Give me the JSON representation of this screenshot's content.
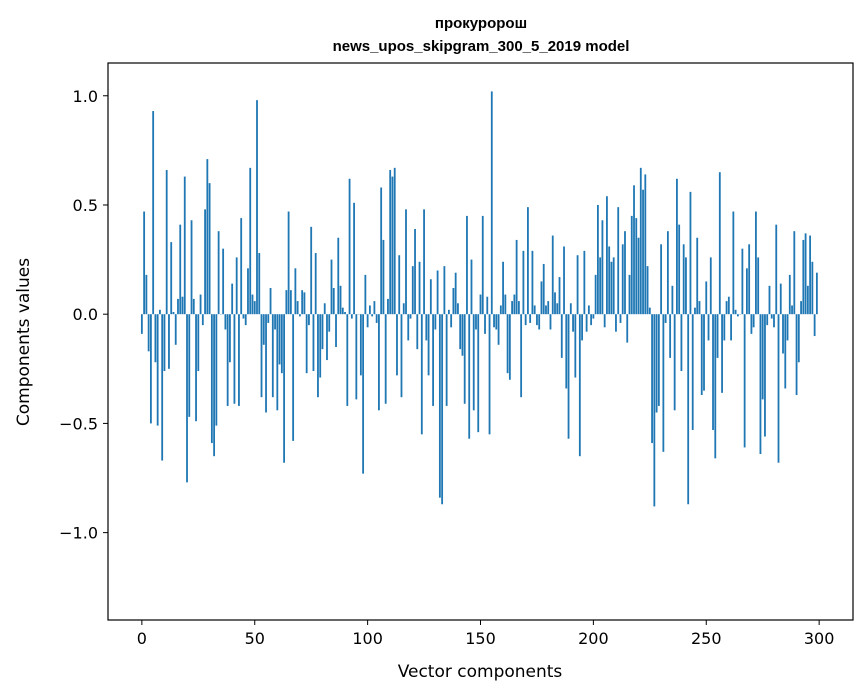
{
  "chart_data": {
    "type": "bar",
    "title": "прокуророш",
    "subtitle": "news_upos_skipgram_300_5_2019 model",
    "xlabel": "Vector components",
    "ylabel": "Components values",
    "xlim": [
      -15,
      315
    ],
    "ylim": [
      -1.4,
      1.15
    ],
    "xticks": [
      0,
      50,
      100,
      150,
      200,
      250,
      300
    ],
    "xtick_labels": [
      "0",
      "50",
      "100",
      "150",
      "200",
      "250",
      "300"
    ],
    "yticks": [
      -1.0,
      -0.5,
      0.0,
      0.5,
      1.0
    ],
    "ytick_labels": [
      "−1.0",
      "−0.5",
      "0.0",
      "0.5",
      "1.0"
    ],
    "grid": false,
    "bar_color": "#1f77b4",
    "values": [
      -0.09,
      0.47,
      0.18,
      -0.17,
      -0.5,
      0.93,
      -0.22,
      -0.51,
      0.02,
      -0.67,
      -0.26,
      0.66,
      -0.25,
      0.33,
      0.01,
      -0.14,
      0.07,
      0.41,
      0.08,
      0.63,
      -0.77,
      -0.47,
      0.43,
      0.07,
      -0.49,
      -0.26,
      0.09,
      -0.05,
      0.48,
      0.71,
      0.6,
      -0.59,
      -0.65,
      -0.51,
      0.38,
      0.0,
      0.3,
      -0.07,
      -0.42,
      -0.22,
      0.14,
      -0.41,
      0.26,
      -0.42,
      0.44,
      -0.02,
      -0.05,
      0.21,
      0.67,
      0.09,
      0.06,
      0.98,
      0.28,
      -0.38,
      -0.14,
      -0.45,
      -0.04,
      0.12,
      -0.38,
      -0.07,
      -0.44,
      -0.23,
      -0.27,
      -0.68,
      0.11,
      0.47,
      0.11,
      -0.58,
      0.21,
      0.06,
      -0.01,
      0.11,
      0.1,
      -0.27,
      -0.05,
      0.4,
      -0.26,
      0.28,
      -0.38,
      -0.29,
      -0.16,
      0.05,
      -0.21,
      -0.08,
      0.25,
      0.12,
      -0.15,
      0.35,
      0.13,
      0.03,
      0.01,
      -0.42,
      0.62,
      -0.02,
      0.51,
      -0.39,
      0.0,
      -0.28,
      -0.73,
      0.18,
      -0.06,
      0.04,
      -0.01,
      0.06,
      -0.04,
      -0.44,
      0.58,
      0.34,
      -0.41,
      0.07,
      0.66,
      0.63,
      0.67,
      -0.28,
      0.27,
      -0.38,
      0.05,
      0.48,
      -0.12,
      -0.02,
      0.22,
      0.39,
      -0.16,
      0.24,
      -0.55,
      0.48,
      -0.12,
      -0.28,
      0.16,
      -0.42,
      -0.07,
      0.2,
      -0.84,
      -0.87,
      0.22,
      -0.42,
      0.02,
      -0.06,
      0.12,
      0.19,
      0.05,
      -0.16,
      -0.19,
      -0.41,
      0.45,
      -0.57,
      0.25,
      -0.44,
      -0.07,
      -0.54,
      0.09,
      0.45,
      -0.09,
      0.08,
      -0.55,
      1.02,
      -0.06,
      -0.07,
      -0.14,
      0.04,
      0.24,
      0.09,
      -0.27,
      -0.3,
      0.06,
      0.09,
      0.34,
      0.06,
      -0.38,
      0.29,
      -0.05,
      0.49,
      -0.04,
      0.29,
      0.04,
      -0.05,
      -0.07,
      0.15,
      0.23,
      0.04,
      0.06,
      -0.07,
      0.36,
      0.1,
      0.05,
      0.17,
      -0.2,
      0.31,
      -0.34,
      -0.57,
      0.05,
      -0.08,
      -0.29,
      0.27,
      -0.65,
      -0.12,
      0.29,
      -0.08,
      0.04,
      -0.05,
      -0.02,
      0.18,
      0.5,
      0.26,
      0.43,
      -0.06,
      0.54,
      0.31,
      0.24,
      0.26,
      -0.08,
      0.49,
      -0.04,
      0.32,
      0.38,
      -0.13,
      0.18,
      0.45,
      0.59,
      0.44,
      0.35,
      0.67,
      0.57,
      0.64,
      0.22,
      0.03,
      -0.59,
      -0.88,
      -0.45,
      -0.42,
      0.32,
      -0.63,
      -0.04,
      0.38,
      -0.2,
      0.13,
      -0.44,
      0.62,
      0.41,
      -0.26,
      0.32,
      0.26,
      -0.87,
      0.56,
      -0.53,
      0.03,
      0.35,
      0.06,
      -0.37,
      -0.35,
      0.15,
      -0.12,
      0.26,
      -0.53,
      -0.66,
      -0.2,
      0.65,
      -0.36,
      -0.12,
      0.06,
      0.08,
      -0.12,
      0.47,
      0.02,
      -0.01,
      0.0,
      0.3,
      -0.61,
      0.21,
      0.32,
      -0.09,
      -0.06,
      0.47,
      0.26,
      -0.64,
      -0.39,
      -0.56,
      -0.05,
      0.13,
      -0.02,
      -0.06,
      0.41,
      -0.68,
      0.14,
      -0.18,
      -0.34,
      -0.12,
      0.18,
      0.04,
      0.38,
      -0.37,
      -0.22,
      0.06,
      0.34,
      0.37,
      0.13,
      0.36,
      0.24,
      -0.1,
      0.19
    ]
  }
}
